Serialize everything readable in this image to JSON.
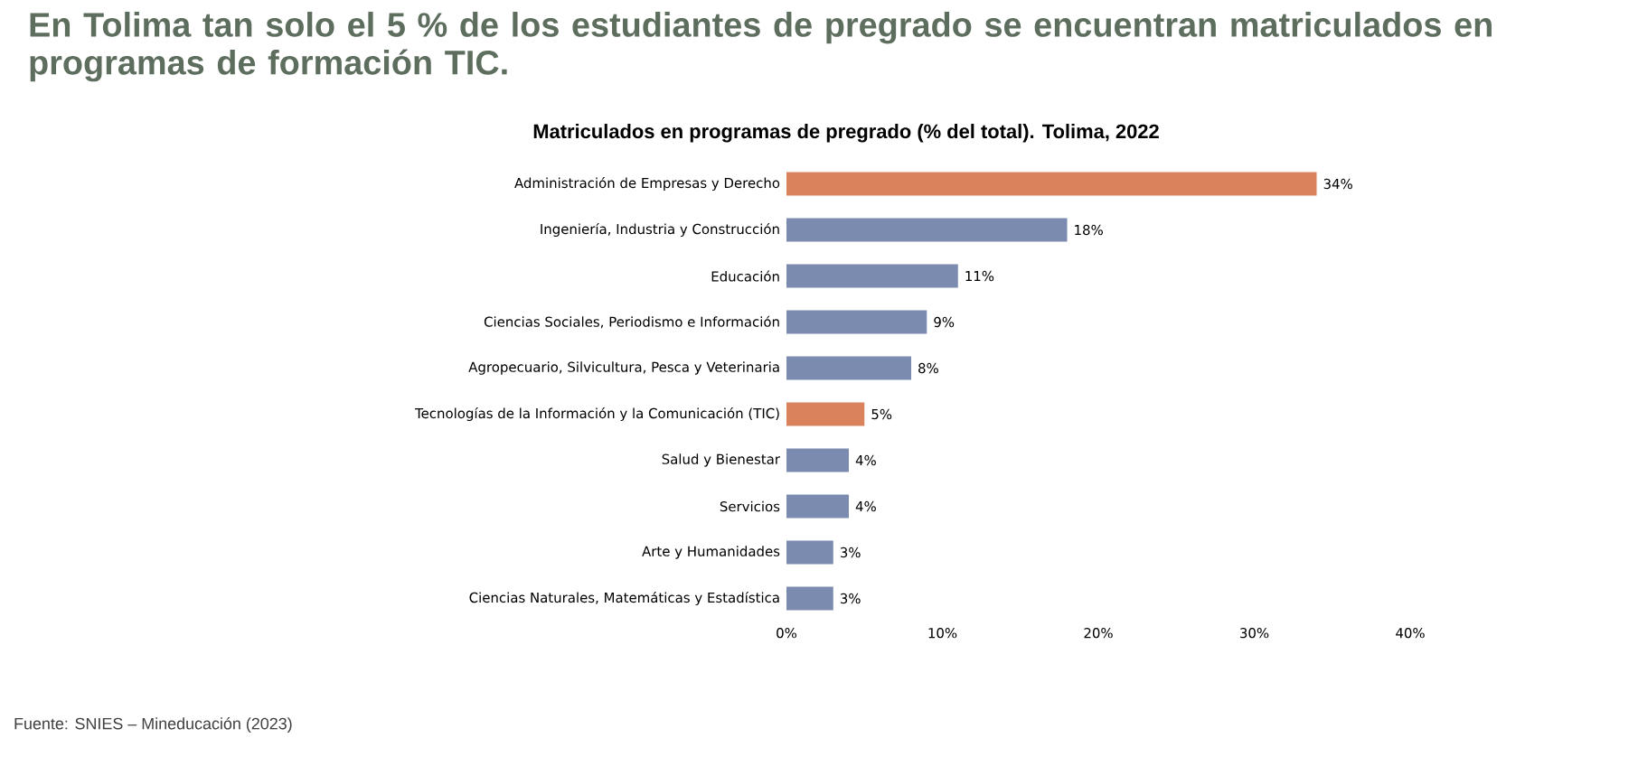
{
  "chart_data": {
    "type": "bar",
    "orientation": "horizontal",
    "title": "En Tolima tan solo el 5 % de los estudiantes de pregrado se encuentran matriculados en programas de formación TIC.",
    "subtitle": "Matriculados en programas de pregrado (% del total). Tolima, 2022",
    "categories": [
      "Administración de Empresas y Derecho",
      "Ingeniería, Industria y Construcción",
      "Educación",
      "Ciencias Sociales, Periodismo e Información",
      "Agropecuario, Silvicultura, Pesca y Veterinaria",
      "Tecnologías de la Información y la Comunicación (TIC)",
      "Salud y Bienestar",
      "Servicios",
      "Arte y Humanidades",
      "Ciencias Naturales, Matemáticas y Estadística"
    ],
    "values": [
      34,
      18,
      11,
      9,
      8,
      5,
      4,
      4,
      3,
      3
    ],
    "value_labels": [
      "34%",
      "18%",
      "11%",
      "9%",
      "8%",
      "5%",
      "4%",
      "4%",
      "3%",
      "3%"
    ],
    "colors": [
      "#d9825b",
      "#7b8bb0",
      "#7b8bb0",
      "#7b8bb0",
      "#7b8bb0",
      "#d9825b",
      "#7b8bb0",
      "#7b8bb0",
      "#7b8bb0",
      "#7b8bb0"
    ],
    "xlim": [
      0,
      40
    ],
    "xticks": [
      {
        "value": 0,
        "label": "0%"
      },
      {
        "value": 10,
        "label": "10%"
      },
      {
        "value": 20,
        "label": "20%"
      },
      {
        "value": 30,
        "label": "30%"
      },
      {
        "value": 40,
        "label": "40%"
      }
    ],
    "annotations": [
      "Fuente: SNIES – Mineducación (2023)"
    ]
  }
}
